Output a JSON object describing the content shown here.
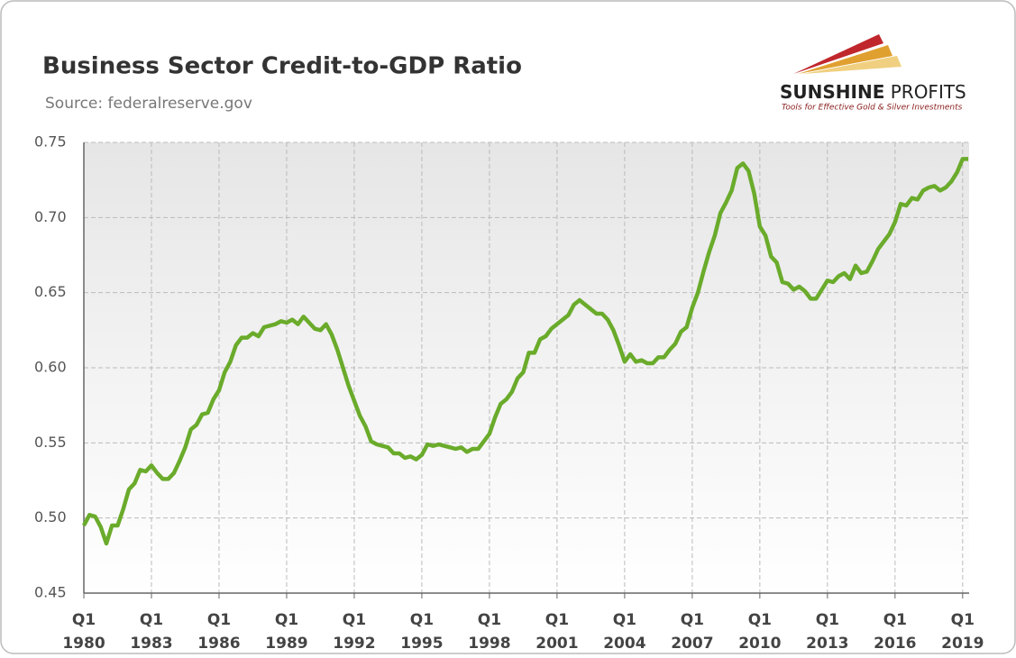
{
  "chart_data": {
    "type": "line",
    "title": "Business Sector Credit-to-GDP Ratio",
    "subtitle": "Source: federalreserve.gov",
    "categories": [
      "Q1 1980",
      null,
      null,
      null,
      null,
      null,
      null,
      null,
      null,
      null,
      null,
      null,
      "Q1 1983",
      null,
      null,
      null,
      null,
      null,
      null,
      null,
      null,
      null,
      null,
      null,
      "Q1 1986",
      null,
      null,
      null,
      null,
      null,
      null,
      null,
      null,
      null,
      null,
      null,
      "Q1 1989",
      null,
      null,
      null,
      null,
      null,
      null,
      null,
      null,
      null,
      null,
      null,
      "Q1 1992",
      null,
      null,
      null,
      null,
      null,
      null,
      null,
      null,
      null,
      null,
      null,
      "Q1 1995",
      null,
      null,
      null,
      null,
      null,
      null,
      null,
      null,
      null,
      null,
      null,
      "Q1 1998",
      null,
      null,
      null,
      null,
      null,
      null,
      null,
      null,
      null,
      null,
      null,
      "Q1 2001",
      null,
      null,
      null,
      null,
      null,
      null,
      null,
      null,
      null,
      null,
      null,
      "Q1 2004",
      null,
      null,
      null,
      null,
      null,
      null,
      null,
      null,
      null,
      null,
      null,
      "Q1 2007",
      null,
      null,
      null,
      null,
      null,
      null,
      null,
      null,
      null,
      null,
      null,
      "Q1 2010",
      null,
      null,
      null,
      null,
      null,
      null,
      null,
      null,
      null,
      null,
      null,
      "Q1 2013",
      null,
      null,
      null,
      null,
      null,
      null,
      null,
      null,
      null,
      null,
      null,
      "Q1 2016",
      null,
      null,
      null,
      null,
      null,
      null,
      null,
      null,
      null,
      null,
      null,
      "Q1 2019",
      null
    ],
    "series": [
      {
        "name": "Business Sector Credit-to-GDP Ratio",
        "color": "#6aab2b",
        "values": [
          0.495,
          0.502,
          0.501,
          0.494,
          0.483,
          0.495,
          0.495,
          0.506,
          0.519,
          0.523,
          0.532,
          0.531,
          0.535,
          0.53,
          0.526,
          0.526,
          0.53,
          0.538,
          0.547,
          0.559,
          0.562,
          0.569,
          0.57,
          0.579,
          0.585,
          0.597,
          0.604,
          0.615,
          0.62,
          0.62,
          0.623,
          0.621,
          0.627,
          0.628,
          0.629,
          0.631,
          0.63,
          0.632,
          0.629,
          0.634,
          0.63,
          0.626,
          0.625,
          0.629,
          0.622,
          0.612,
          0.6,
          0.588,
          0.578,
          0.568,
          0.561,
          0.551,
          0.549,
          0.548,
          0.547,
          0.543,
          0.543,
          0.54,
          0.541,
          0.539,
          0.542,
          0.549,
          0.548,
          0.549,
          0.548,
          0.547,
          0.546,
          0.547,
          0.544,
          0.546,
          0.546,
          0.551,
          0.556,
          0.567,
          0.576,
          0.579,
          0.584,
          0.593,
          0.597,
          0.61,
          0.61,
          0.619,
          0.621,
          0.626,
          0.629,
          0.632,
          0.635,
          0.642,
          0.645,
          0.642,
          0.639,
          0.636,
          0.636,
          0.632,
          0.625,
          0.615,
          0.604,
          0.609,
          0.604,
          0.605,
          0.603,
          0.603,
          0.607,
          0.607,
          0.612,
          0.616,
          0.624,
          0.627,
          0.64,
          0.65,
          0.664,
          0.677,
          0.688,
          0.703,
          0.71,
          0.718,
          0.733,
          0.736,
          0.731,
          0.716,
          0.694,
          0.688,
          0.674,
          0.67,
          0.657,
          0.656,
          0.652,
          0.654,
          0.651,
          0.646,
          0.646,
          0.652,
          0.658,
          0.657,
          0.661,
          0.663,
          0.659,
          0.668,
          0.663,
          0.664,
          0.671,
          0.679,
          0.684,
          0.689,
          0.697,
          0.709,
          0.708,
          0.713,
          0.712,
          0.718,
          0.72,
          0.721,
          0.718,
          0.72,
          0.724,
          0.73,
          0.739,
          0.739
        ]
      }
    ],
    "ylim": [
      0.45,
      0.75
    ],
    "yticks": [
      0.45,
      {
        "value": 0.5,
        "label": "0.50"
      },
      0.55,
      {
        "value": 0.6,
        "label": "0.60"
      },
      0.65,
      {
        "value": 0.7,
        "label": "0.70"
      },
      0.75
    ],
    "grid": true
  },
  "logo": {
    "brand_bold": "SUNSHINE",
    "brand": "PROFITS",
    "tagline": "Tools for Effective Gold & Silver Investments"
  }
}
